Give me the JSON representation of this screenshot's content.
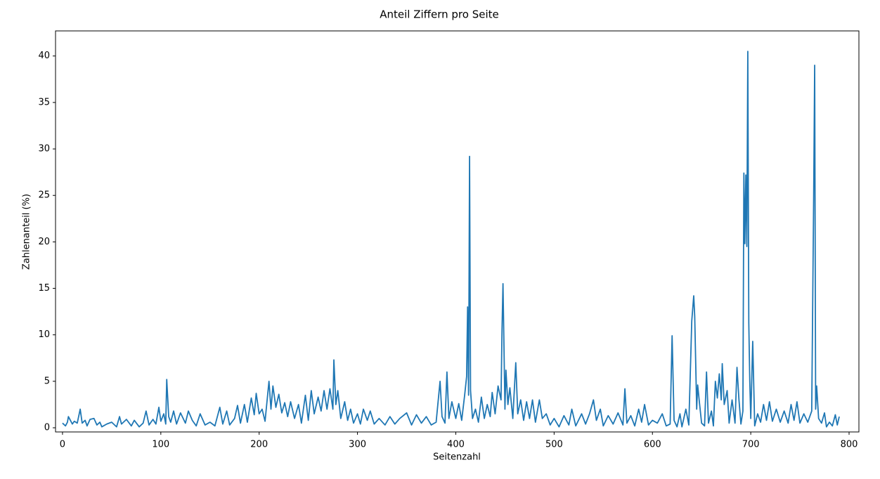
{
  "chart_data": {
    "type": "line",
    "title": "Anteil Ziffern pro Seite",
    "x_label": "Seitenzahl",
    "y_label": "Zahlenanteil (%)",
    "xlim": [
      -7.1,
      810
    ],
    "ylim": [
      -0.45,
      42.7
    ],
    "xticks": [
      0,
      100,
      200,
      300,
      400,
      500,
      600,
      700,
      800
    ],
    "yticks": [
      0,
      5,
      10,
      15,
      20,
      25,
      30,
      35,
      40
    ],
    "grid": false,
    "series": [
      {
        "color": "#1f77b4",
        "x": [
          0,
          3,
          5,
          6,
          8,
          10,
          12,
          15,
          18,
          20,
          23,
          25,
          28,
          32,
          35,
          38,
          40,
          45,
          50,
          55,
          58,
          60,
          65,
          70,
          73,
          78,
          82,
          85,
          88,
          92,
          95,
          98,
          100,
          103,
          105,
          106,
          108,
          110,
          113,
          116,
          120,
          125,
          128,
          132,
          136,
          140,
          145,
          150,
          155,
          160,
          163,
          167,
          170,
          175,
          178,
          181,
          185,
          188,
          192,
          195,
          197,
          200,
          203,
          206,
          210,
          212,
          214,
          217,
          220,
          223,
          226,
          229,
          232,
          236,
          240,
          243,
          247,
          250,
          253,
          256,
          260,
          263,
          266,
          269,
          272,
          275,
          276,
          278,
          280,
          283,
          287,
          290,
          293,
          296,
          300,
          303,
          306,
          310,
          313,
          317,
          322,
          328,
          333,
          338,
          343,
          350,
          355,
          360,
          365,
          370,
          375,
          380,
          384,
          386,
          389,
          391,
          393,
          396,
          400,
          403,
          406,
          409,
          411,
          412,
          413,
          414,
          415,
          417,
          420,
          423,
          426,
          429,
          432,
          435,
          437,
          440,
          443,
          446,
          447,
          448,
          450,
          451,
          453,
          455,
          458,
          461,
          463,
          466,
          469,
          472,
          475,
          478,
          481,
          485,
          488,
          492,
          496,
          500,
          505,
          510,
          515,
          518,
          522,
          528,
          532,
          536,
          540,
          543,
          547,
          550,
          555,
          560,
          565,
          570,
          572,
          574,
          578,
          582,
          586,
          589,
          592,
          596,
          600,
          605,
          610,
          614,
          618,
          620,
          622,
          625,
          628,
          630,
          634,
          637,
          640,
          642,
          643,
          645,
          646,
          648,
          650,
          653,
          655,
          657,
          660,
          662,
          664,
          666,
          668,
          670,
          671,
          673,
          676,
          678,
          681,
          684,
          686,
          688,
          690,
          692,
          693,
          694,
          695,
          696,
          697,
          698,
          699,
          700,
          702,
          704,
          707,
          710,
          713,
          716,
          719,
          722,
          726,
          730,
          734,
          738,
          741,
          744,
          747,
          750,
          754,
          758,
          762,
          764,
          765,
          766,
          767,
          769,
          772,
          775,
          777,
          780,
          783,
          786,
          788,
          790
        ],
        "values": [
          0.5,
          0.2,
          0.6,
          1.2,
          0.8,
          0.4,
          0.7,
          0.5,
          2.0,
          0.5,
          0.8,
          0.2,
          0.9,
          1.0,
          0.3,
          0.6,
          0.1,
          0.4,
          0.6,
          0.1,
          1.2,
          0.4,
          0.9,
          0.2,
          0.8,
          0.1,
          0.5,
          1.8,
          0.3,
          0.9,
          0.4,
          2.2,
          0.7,
          1.5,
          0.4,
          5.2,
          1.2,
          0.6,
          1.8,
          0.4,
          1.6,
          0.5,
          1.8,
          0.8,
          0.2,
          1.5,
          0.3,
          0.6,
          0.2,
          2.2,
          0.4,
          1.8,
          0.3,
          1.0,
          2.4,
          0.5,
          2.5,
          0.6,
          3.2,
          1.4,
          3.7,
          1.5,
          2.0,
          0.7,
          5.0,
          2.0,
          4.5,
          2.2,
          3.6,
          1.6,
          2.7,
          1.2,
          2.8,
          1.0,
          2.5,
          0.5,
          3.5,
          0.8,
          4.0,
          1.5,
          3.3,
          1.8,
          4.0,
          2.0,
          4.2,
          2.0,
          7.3,
          2.5,
          4.0,
          1.0,
          2.8,
          0.8,
          2.0,
          0.5,
          1.5,
          0.4,
          2.0,
          0.8,
          1.8,
          0.4,
          1.0,
          0.3,
          1.2,
          0.4,
          1.0,
          1.6,
          0.3,
          1.4,
          0.5,
          1.2,
          0.3,
          0.6,
          5.0,
          1.2,
          0.5,
          6.0,
          1.0,
          2.8,
          1.0,
          2.6,
          0.8,
          3.5,
          5.5,
          13.0,
          3.5,
          29.2,
          4.0,
          1.0,
          2.0,
          0.6,
          3.3,
          1.0,
          2.5,
          1.2,
          3.8,
          1.5,
          4.5,
          3.0,
          10.5,
          15.5,
          2.0,
          6.2,
          2.5,
          4.3,
          1.0,
          7.0,
          1.5,
          3.0,
          0.8,
          2.8,
          1.0,
          3.0,
          0.6,
          3.0,
          1.0,
          1.5,
          0.3,
          1.0,
          0.1,
          1.3,
          0.3,
          2.0,
          0.2,
          1.5,
          0.4,
          1.5,
          3.0,
          0.8,
          2.0,
          0.2,
          1.3,
          0.4,
          1.6,
          0.3,
          4.2,
          0.5,
          1.3,
          0.2,
          2.0,
          0.6,
          2.5,
          0.3,
          0.8,
          0.5,
          1.5,
          0.2,
          0.4,
          9.9,
          0.8,
          0.1,
          1.5,
          0.1,
          2.0,
          0.3,
          11.5,
          14.2,
          12.0,
          2.0,
          4.6,
          2.5,
          0.5,
          0.2,
          6.0,
          0.5,
          1.8,
          0.2,
          5.0,
          3.2,
          5.8,
          3.0,
          6.9,
          2.5,
          4.0,
          0.5,
          3.0,
          0.5,
          6.5,
          3.0,
          0.4,
          1.8,
          27.4,
          19.8,
          27.2,
          19.5,
          40.5,
          11.3,
          5.0,
          1.0,
          9.3,
          0.2,
          1.5,
          0.6,
          2.5,
          0.8,
          2.8,
          0.7,
          2.0,
          0.6,
          1.8,
          0.5,
          2.5,
          0.8,
          2.8,
          0.5,
          1.5,
          0.6,
          1.8,
          25.0,
          39.0,
          2.0,
          4.5,
          1.0,
          0.5,
          1.6,
          0.1,
          0.6,
          0.2,
          1.4,
          0.3,
          1.2
        ]
      }
    ]
  }
}
